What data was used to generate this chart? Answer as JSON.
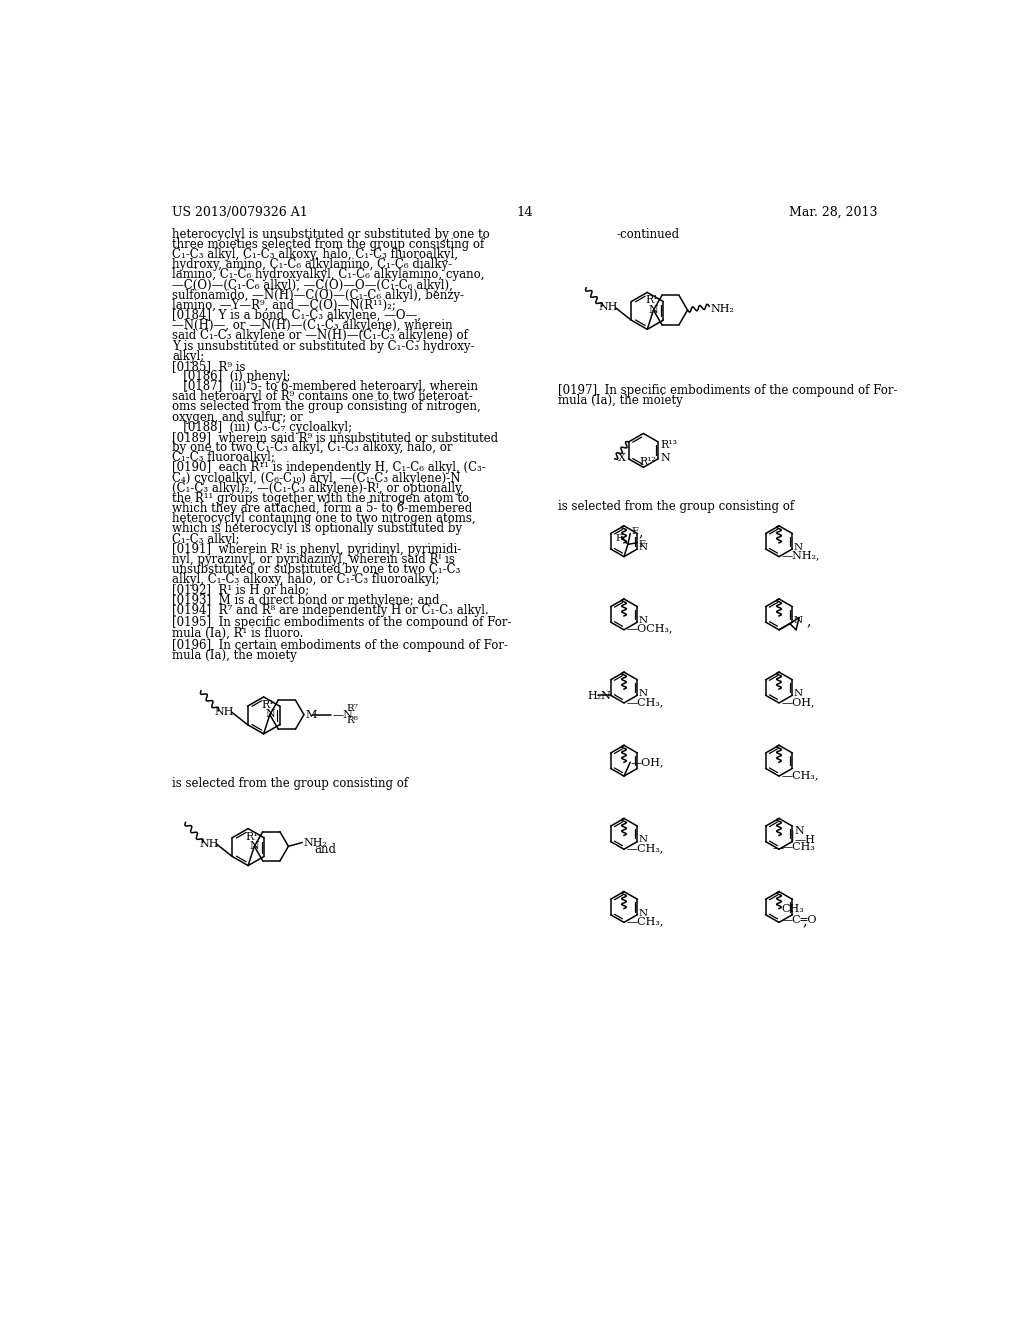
{
  "bg": "#ffffff",
  "header_left": "US 2013/0079326 A1",
  "header_center": "14",
  "header_right": "Mar. 28, 2013",
  "left_text": [
    {
      "t": "heterocyclyl is unsubstituted or substituted by one to",
      "ind": 0
    },
    {
      "t": "three moieties selected from the group consisting of",
      "ind": 0
    },
    {
      "t": "C₁-C₃ alkyl, C₁-C₃ alkoxy, halo, C₁-C₃ fluoroalkyl,",
      "ind": 0
    },
    {
      "t": "hydroxy, amino, C₁-C₆ alkylamino, C₁-C₆ dialky-",
      "ind": 0
    },
    {
      "t": "lamino, C₁-C₆ hydroxyalkyl, C₁-C₆ alkylamino, cyano,",
      "ind": 0
    },
    {
      "t": "—C(O)—(C₁-C₆ alkyl), —C(O)—O—(C₁-C₆ alkyl),",
      "ind": 0
    },
    {
      "t": "sulfonamido, —N(H)—C(O)—(C₁-C₆ alkyl), benzy-",
      "ind": 0
    },
    {
      "t": "lamino, —Y—R⁹, and —C(O)—N(R¹¹)₂;",
      "ind": 0
    },
    {
      "t": "[0184]  Y is a bond, C₁-C₃ alkylene, —O—,",
      "ind": 0
    },
    {
      "t": "—N(H)—, or —N(H)—(C₁-C₃ alkylene), wherein",
      "ind": 0
    },
    {
      "t": "said C₁-C₃ alkylene or —N(H)—(C₁-C₃ alkylene) of",
      "ind": 0
    },
    {
      "t": "Y is unsubstituted or substituted by C₁-C₃ hydroxy-",
      "ind": 0
    },
    {
      "t": "alkyl;",
      "ind": 0
    },
    {
      "t": "[0185]  R⁹ is",
      "ind": 0
    },
    {
      "t": "   [0186]  (i) phenyl;",
      "ind": 1
    },
    {
      "t": "   [0187]  (ii) 5- to 6-membered heteroaryl, wherein",
      "ind": 1
    },
    {
      "t": "said heteroaryl of R⁹ contains one to two heteroat-",
      "ind": 0
    },
    {
      "t": "oms selected from the group consisting of nitrogen,",
      "ind": 0
    },
    {
      "t": "oxygen, and sulfur; or",
      "ind": 0
    },
    {
      "t": "   [0188]  (iii) C₃-C₇ cycloalkyl;",
      "ind": 1
    },
    {
      "t": "[0189]  wherein said R⁹ is unsubstituted or substituted",
      "ind": 0
    },
    {
      "t": "by one to two C₁-C₃ alkyl, C₁-C₃ alkoxy, halo, or",
      "ind": 0
    },
    {
      "t": "C₁-C₃ fluoroalkyl;",
      "ind": 0
    },
    {
      "t": "[0190]  each R¹¹ is independently H, C₁-C₆ alkyl, (C₃-",
      "ind": 0
    },
    {
      "t": "C₄) cycloalkyl, (C₆-C₁₀) aryl, —(C₁-C₃ alkylene)-N",
      "ind": 0
    },
    {
      "t": "(C₁-C₃ alkyl)₂, —(C₁-C₃ alkylene)-Rᴵ, or optionally,",
      "ind": 0
    },
    {
      "t": "the R¹¹ groups together with the nitrogen atom to",
      "ind": 0
    },
    {
      "t": "which they are attached, form a 5- to 6-membered",
      "ind": 0
    },
    {
      "t": "heterocyclyl containing one to two nitrogen atoms,",
      "ind": 0
    },
    {
      "t": "which is heterocyclyl is optionally substituted by",
      "ind": 0
    },
    {
      "t": "C₁-C₃ alkyl;",
      "ind": 0
    },
    {
      "t": "[0191]  wherein Rᴵ is phenyl, pyridinyl, pyrimidi-",
      "ind": 0
    },
    {
      "t": "nyl, pyrazinyl, or pyridazinyl, wherein said Rᴵ is",
      "ind": 0
    },
    {
      "t": "unsubstituted or substituted by one to two C₁-C₃",
      "ind": 0
    },
    {
      "t": "alkyl, C₁-C₃ alkoxy, halo, or C₁-C₃ fluoroalkyl;",
      "ind": 0
    },
    {
      "t": "[0192]  R¹ is H or halo;",
      "ind": 0
    },
    {
      "t": "[0193]  M is a direct bond or methylene; and",
      "ind": 0
    },
    {
      "t": "[0194]  R⁷ and R⁸ are independently H or C₁-C₃ alkyl.",
      "ind": 0
    },
    {
      "t": "[0195]  In specific embodiments of the compound of For-",
      "ind": 0
    },
    {
      "t": "mula (Ia), R¹ is fluoro.",
      "ind": 0
    },
    {
      "t": "[0196]  In certain embodiments of the compound of For-",
      "ind": 0
    },
    {
      "t": "mula (Ia), the moiety",
      "ind": 0
    }
  ],
  "right_text_1": "-continued",
  "right_text_2a": "[0197]  In specific embodiments of the compound of For-",
  "right_text_2b": "mula (Ia), the moiety",
  "right_text_3": "is selected from the group consisting of"
}
